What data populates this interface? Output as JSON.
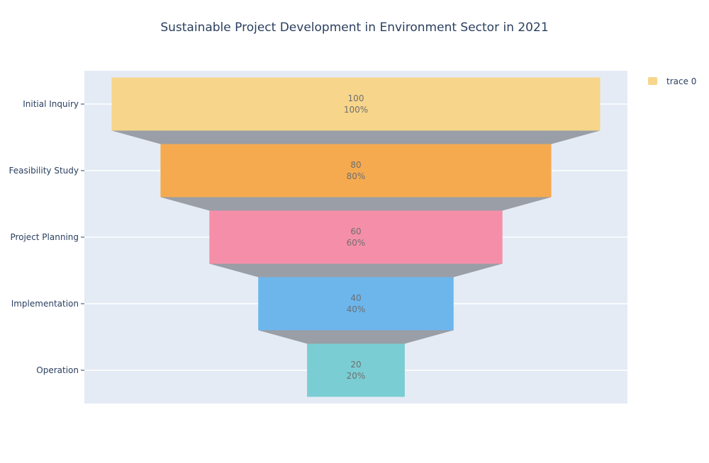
{
  "chart_data": {
    "type": "funnel",
    "title": "Sustainable Project Development in Environment Sector in 2021",
    "categories": [
      "Initial Inquiry",
      "Feasibility Study",
      "Project Planning",
      "Implementation",
      "Operation"
    ],
    "values": [
      100,
      80,
      60,
      40,
      20
    ],
    "percent_labels": [
      "100%",
      "80%",
      "60%",
      "40%",
      "20%"
    ],
    "colors": [
      "#f7d58a",
      "#f5aa50",
      "#f58fa9",
      "#6cb6ec",
      "#7acdd3"
    ],
    "connector_color": "#9a9ea6",
    "plot_background": "#e5ebf5",
    "gridlines": true,
    "legend": {
      "position": "top-right",
      "entries": [
        {
          "name": "trace 0",
          "color": "#f7d58a"
        }
      ]
    }
  }
}
